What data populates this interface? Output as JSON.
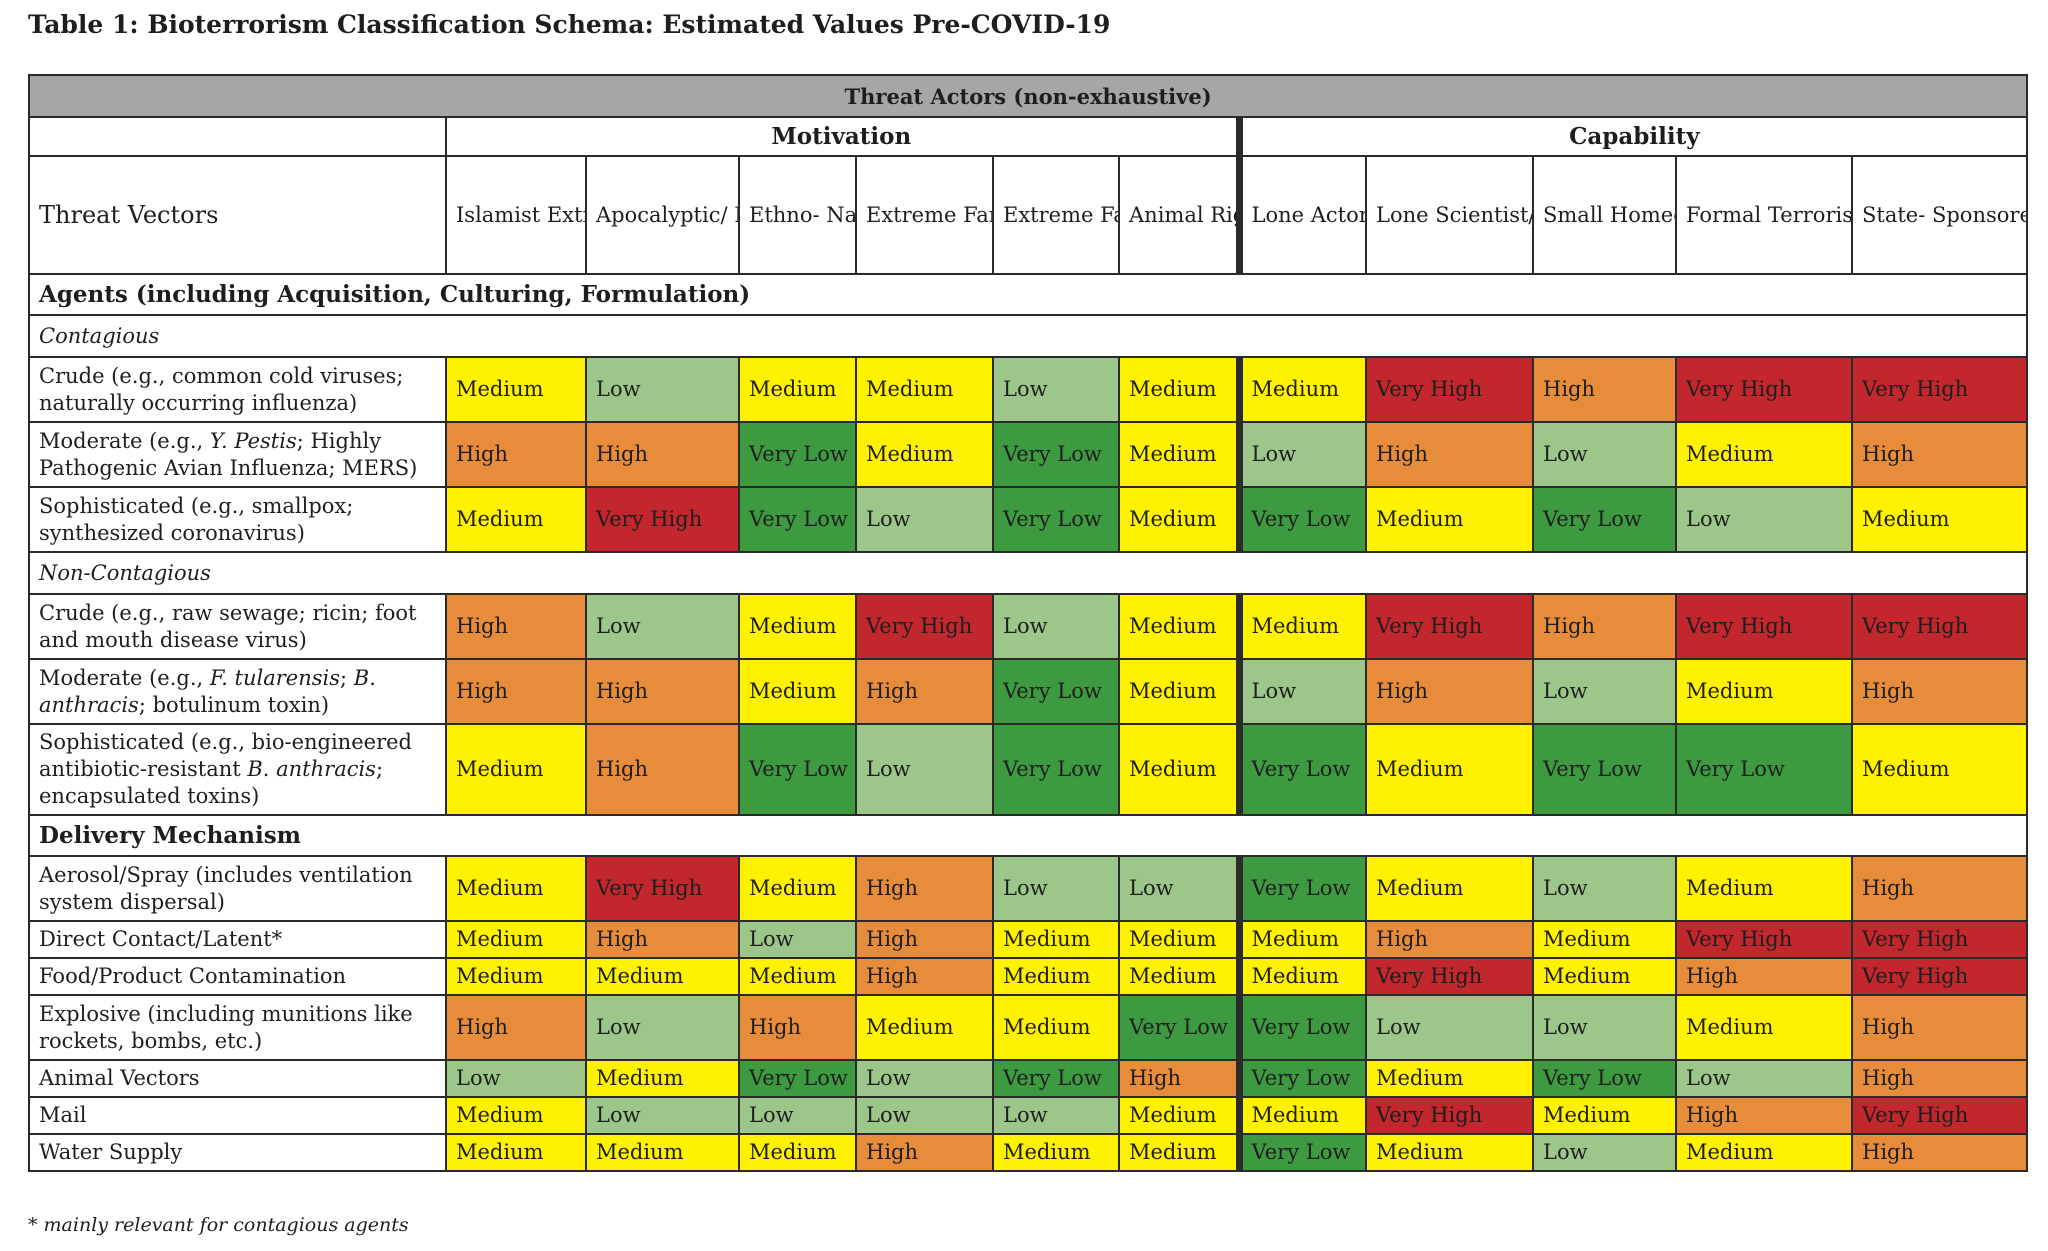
{
  "title": "Table 1: Bioterrorism Classification Schema: Estimated Values Pre-COVID-19",
  "header": {
    "band": "Threat Actors (non-exhaustive)",
    "motivation": "Motivation",
    "capability": "Capability",
    "threat_vectors": "Threat Vectors",
    "columns": [
      "Islamist Extremist (mostly Sunni)",
      "Apocalyptic/ Millenarian Cult",
      "Ethno- National",
      "Extreme Far-Right",
      "Extreme Far-Left",
      "Animal Rights/ Environ.",
      "Lone Actor",
      "Lone Scientist/ Insider",
      "Small Homegrown Cell",
      "Formal Terrorist Organization",
      "State- Sponsored Terrorist Organization"
    ]
  },
  "sections": {
    "agents": "Agents (including Acquisition, Culturing, Formulation)",
    "contagious": "Contagious",
    "noncontagious": "Non-Contagious",
    "delivery": "Delivery Mechanism"
  },
  "rows": {
    "c_crude": {
      "label_a": "Crude (e.g., common cold viruses; naturally occurring influenza)",
      "values": [
        "Medium",
        "Low",
        "Medium",
        "Medium",
        "Low",
        "Medium",
        "Medium",
        "Very High",
        "High",
        "Very High",
        "Very High"
      ]
    },
    "c_moderate": {
      "label_a": "Moderate (e.g., ",
      "label_b": "Y. Pestis",
      "label_c": "; Highly Pathogenic Avian Influenza; MERS)",
      "values": [
        "High",
        "High",
        "Very Low",
        "Medium",
        "Very Low",
        "Medium",
        "Low",
        "High",
        "Low",
        "Medium",
        "High"
      ]
    },
    "c_soph": {
      "label_a": "Sophisticated (e.g., smallpox; synthesized coronavirus)",
      "values": [
        "Medium",
        "Very High",
        "Very Low",
        "Low",
        "Very Low",
        "Medium",
        "Very Low",
        "Medium",
        "Very Low",
        "Low",
        "Medium"
      ]
    },
    "n_crude": {
      "label_a": "Crude (e.g., raw sewage; ricin; foot and mouth disease virus)",
      "values": [
        "High",
        "Low",
        "Medium",
        "Very High",
        "Low",
        "Medium",
        "Medium",
        "Very High",
        "High",
        "Very High",
        "Very High"
      ]
    },
    "n_moderate": {
      "label_a": "Moderate (e.g., ",
      "label_b": "F. tularensis",
      "label_c": "; ",
      "label_d": "B. anthracis",
      "label_e": "; botulinum toxin)",
      "values": [
        "High",
        "High",
        "Medium",
        "High",
        "Very Low",
        "Medium",
        "Low",
        "High",
        "Low",
        "Medium",
        "High"
      ]
    },
    "n_soph": {
      "label_a": "Sophisticated (e.g., bio-engineered antibiotic-resistant ",
      "label_b": "B. anthracis",
      "label_c": "; encapsulated toxins)",
      "values": [
        "Medium",
        "High",
        "Very Low",
        "Low",
        "Very Low",
        "Medium",
        "Very Low",
        "Medium",
        "Very Low",
        "Very Low",
        "Medium"
      ]
    },
    "d_aerosol": {
      "label_a": "Aerosol/Spray (includes ventilation system dispersal)",
      "values": [
        "Medium",
        "Very High",
        "Medium",
        "High",
        "Low",
        "Low",
        "Very Low",
        "Medium",
        "Low",
        "Medium",
        "High"
      ]
    },
    "d_direct": {
      "label_a": "Direct Contact/Latent*",
      "values": [
        "Medium",
        "High",
        "Low",
        "High",
        "Medium",
        "Medium",
        "Medium",
        "High",
        "Medium",
        "Very High",
        "Very High"
      ]
    },
    "d_food": {
      "label_a": "Food/Product Contamination",
      "values": [
        "Medium",
        "Medium",
        "Medium",
        "High",
        "Medium",
        "Medium",
        "Medium",
        "Very High",
        "Medium",
        "High",
        "Very High"
      ]
    },
    "d_explosive": {
      "label_a": "Explosive (including munitions like rockets, bombs, etc.)",
      "values": [
        "High",
        "Low",
        "High",
        "Medium",
        "Medium",
        "Very Low",
        "Very Low",
        "Low",
        "Low",
        "Medium",
        "High"
      ]
    },
    "d_animal": {
      "label_a": "Animal Vectors",
      "values": [
        "Low",
        "Medium",
        "Very Low",
        "Low",
        "Very Low",
        "High",
        "Very Low",
        "Medium",
        "Very Low",
        "Low",
        "High"
      ]
    },
    "d_mail": {
      "label_a": "Mail",
      "values": [
        "Medium",
        "Low",
        "Low",
        "Low",
        "Low",
        "Medium",
        "Medium",
        "Very High",
        "Medium",
        "High",
        "Very High"
      ]
    },
    "d_water": {
      "label_a": "Water Supply",
      "values": [
        "Medium",
        "Medium",
        "Medium",
        "High",
        "Medium",
        "Medium",
        "Very Low",
        "Medium",
        "Low",
        "Medium",
        "High"
      ]
    }
  },
  "level_colors": {
    "Very High": "#c1272d",
    "High": "#e78c3a",
    "Medium": "#fff200",
    "Low": "#9dc78a",
    "Very Low": "#3e9a41"
  },
  "footnote": "* mainly relevant for contagious agents"
}
